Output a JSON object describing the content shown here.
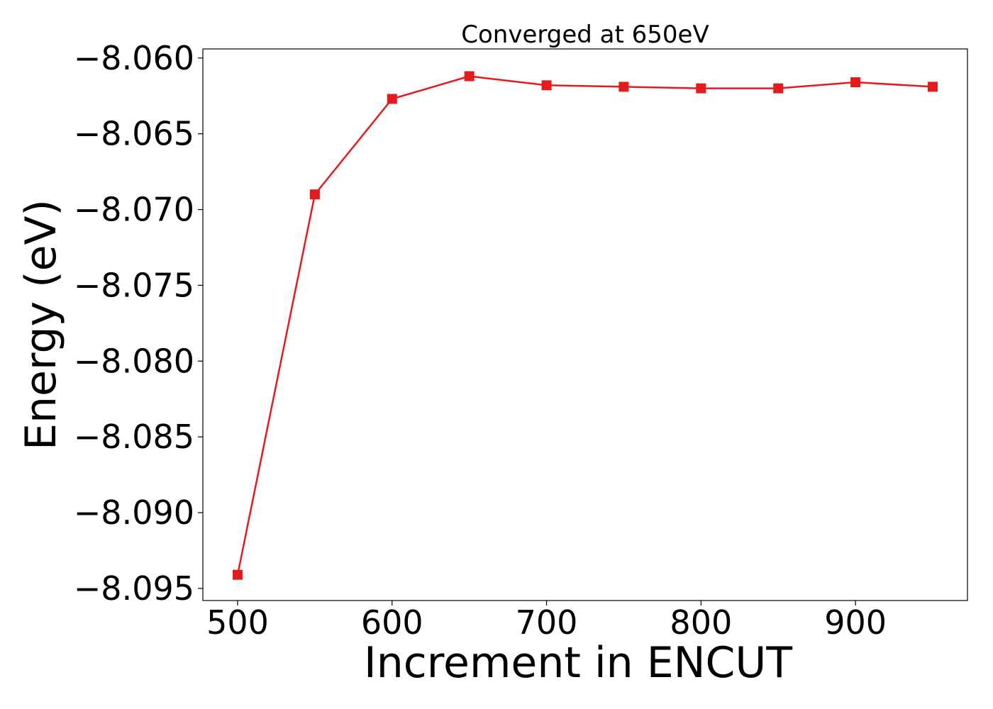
{
  "chart_data": {
    "type": "line",
    "title": "Converged at 650eV",
    "xlabel": "Increment in ENCUT",
    "ylabel": "Energy (eV)",
    "x": [
      500,
      550,
      600,
      650,
      700,
      750,
      800,
      850,
      900,
      950
    ],
    "series": [
      {
        "values": [
          -8.0941,
          -8.069,
          -8.0627,
          -8.0612,
          -8.0618,
          -8.0619,
          -8.062,
          -8.062,
          -8.0616,
          -8.0619
        ],
        "color": "#e41a1c",
        "marker": "square"
      }
    ],
    "xlim": [
      477.5,
      972.5
    ],
    "ylim": [
      -8.0958,
      -8.0594
    ],
    "xticks": [
      500,
      600,
      700,
      800,
      900
    ],
    "xtick_labels": [
      "500",
      "600",
      "700",
      "800",
      "900"
    ],
    "yticks": [
      -8.095,
      -8.09,
      -8.085,
      -8.08,
      -8.075,
      -8.07,
      -8.065,
      -8.06
    ],
    "ytick_labels": [
      "−8.095",
      "−8.090",
      "−8.085",
      "−8.080",
      "−8.075",
      "−8.070",
      "−8.065",
      "−8.060"
    ],
    "grid": false,
    "legend": "none"
  }
}
